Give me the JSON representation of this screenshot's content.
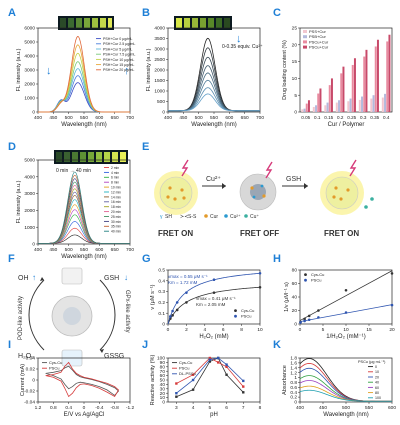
{
  "chart_data": [
    {
      "id": "A",
      "type": "line",
      "panel_label": "A",
      "xlabel": "Wavelength (nm)",
      "ylabel": "FL intensity (a.u.)",
      "xlim": [
        400,
        700
      ],
      "ylim": [
        0,
        6000
      ],
      "xticks": [
        400,
        450,
        500,
        550,
        600,
        650,
        700
      ],
      "yticks": [
        0,
        1000,
        2000,
        3000,
        4000,
        5000,
        6000
      ],
      "legend_position": "top-right",
      "peaks": [
        475,
        530
      ],
      "series": [
        {
          "name": "PSH+Cur 0 μg/mL",
          "color": "#3b4fc4",
          "values": [
            800,
            2100
          ]
        },
        {
          "name": "PSH+Cur 2.5 μg/mL",
          "color": "#4c7fdc",
          "values": [
            750,
            2600
          ]
        },
        {
          "name": "PSH+Cur 5 μg/mL",
          "color": "#5fb8d8",
          "values": [
            700,
            3100
          ]
        },
        {
          "name": "PSH+Cur 7.5 μg/mL",
          "color": "#79c97a",
          "values": [
            650,
            3600
          ]
        },
        {
          "name": "PSH+Cur 10 μg/mL",
          "color": "#c4d24a",
          "values": [
            600,
            4200
          ]
        },
        {
          "name": "PSH+Cur 15 μg/mL",
          "color": "#e8a83a",
          "values": [
            550,
            4800
          ]
        },
        {
          "name": "PSH+Cur 20 μg/mL",
          "color": "#e06a3c",
          "values": [
            500,
            5400
          ]
        }
      ]
    },
    {
      "id": "B",
      "type": "line",
      "panel_label": "B",
      "xlabel": "Wavelength (nm)",
      "ylabel": "FL intensity (a.u.)",
      "xlim": [
        400,
        700
      ],
      "ylim": [
        0,
        4000
      ],
      "xticks": [
        400,
        450,
        500,
        550,
        600,
        650,
        700
      ],
      "yticks": [
        0,
        500,
        1000,
        1500,
        2000,
        2500,
        3000,
        3500,
        4000
      ],
      "annotation": "0-0.35 equiv. Cu²⁺",
      "peak": 530,
      "peaks_by_curve": [
        3450,
        3000,
        2550,
        2150,
        1800,
        1450,
        1100,
        800
      ]
    },
    {
      "id": "C",
      "type": "bar",
      "panel_label": "C",
      "xlabel": "Cur / Polymer",
      "ylabel": "Drug loading content (%)",
      "categories": [
        "0.05",
        "0.1",
        "0.15",
        "0.2",
        "0.25",
        "0.3",
        "0.35",
        "0.4"
      ],
      "ylim": [
        0,
        25
      ],
      "yticks": [
        0,
        5,
        10,
        15,
        20,
        25
      ],
      "legend_position": "top-left",
      "series": [
        {
          "name": "PSS+Cur",
          "color": "#f2c6cf",
          "values": [
            0.8,
            1.5,
            2.0,
            2.8,
            3.2,
            3.6,
            4.0,
            4.3
          ]
        },
        {
          "name": "PSB+Cur",
          "color": "#b4b9dc",
          "values": [
            1.0,
            2.0,
            2.8,
            3.5,
            4.0,
            4.6,
            5.0,
            5.4
          ]
        },
        {
          "name": "PSCu+Cur",
          "color": "#e98ba0",
          "values": [
            2.5,
            5.5,
            8.0,
            11.5,
            14.0,
            16.5,
            19.5,
            21.0
          ]
        },
        {
          "name": "PSCu+Cur",
          "color": "#c84a6a",
          "values": [
            3.5,
            7.0,
            10.0,
            13.5,
            16.0,
            18.5,
            21.5,
            23.0
          ]
        }
      ]
    },
    {
      "id": "D",
      "type": "line",
      "panel_label": "D",
      "xlabel": "Wavelength (nm)",
      "ylabel": "FL intensity (a.u.)",
      "xlim": [
        400,
        700
      ],
      "ylim": [
        0,
        5000
      ],
      "xticks": [
        400,
        450,
        500,
        550,
        600,
        650,
        700
      ],
      "yticks": [
        0,
        1000,
        2000,
        3000,
        4000,
        5000
      ],
      "annotation": "0 min → 40 min",
      "peak": 520,
      "legend_position": "right",
      "series": [
        {
          "name": "0 min",
          "color": "#222222",
          "value": 500
        },
        {
          "name": "2 min",
          "color": "#e04040",
          "value": 900
        },
        {
          "name": "4 min",
          "color": "#3060e0",
          "value": 1300
        },
        {
          "name": "6 min",
          "color": "#30b040",
          "value": 1700
        },
        {
          "name": "8 min",
          "color": "#b040c0",
          "value": 2000
        },
        {
          "name": "10 min",
          "color": "#e0a020",
          "value": 2300
        },
        {
          "name": "12 min",
          "color": "#20b0c0",
          "value": 2600
        },
        {
          "name": "14 min",
          "color": "#8a5a2a",
          "value": 2850
        },
        {
          "name": "16 min",
          "color": "#6060a0",
          "value": 3050
        },
        {
          "name": "18 min",
          "color": "#a0a020",
          "value": 3250
        },
        {
          "name": "20 min",
          "color": "#e06090",
          "value": 3450
        },
        {
          "name": "25 min",
          "color": "#409060",
          "value": 3650
        },
        {
          "name": "30 min",
          "color": "#404080",
          "value": 3850
        },
        {
          "name": "35 min",
          "color": "#c06030",
          "value": 4050
        },
        {
          "name": "40 min",
          "color": "#208080",
          "value": 4250
        }
      ]
    },
    {
      "id": "G",
      "type": "scatter",
      "panel_label": "G",
      "xlabel": "H₂O₂ (mM)",
      "ylabel": "v (μM s⁻¹)",
      "xlim": [
        0,
        10
      ],
      "ylim": [
        0,
        0.5
      ],
      "xticks": [
        0,
        2,
        4,
        6,
        8,
        10
      ],
      "yticks": [
        0,
        0.1,
        0.2,
        0.3,
        0.4,
        0.5
      ],
      "legend_position": "bottom-right",
      "annotations": [
        {
          "line1": "vmax = 0.55 μM s⁻¹",
          "line2": "Km = 1.72 mM"
        },
        {
          "line1": "vmax = 0.41 μM s⁻¹",
          "line2": "Km = 2.05 mM"
        }
      ],
      "series": [
        {
          "name": "Cys-Cu",
          "color": "#333333",
          "vmax": 0.41,
          "km": 2.05,
          "x": [
            0.25,
            0.5,
            1,
            2,
            5,
            10
          ],
          "y": [
            0.05,
            0.08,
            0.13,
            0.2,
            0.29,
            0.34
          ]
        },
        {
          "name": "PSCu",
          "color": "#2f55b0",
          "vmax": 0.55,
          "km": 1.72,
          "x": [
            0.25,
            0.5,
            1,
            2,
            5,
            10
          ],
          "y": [
            0.07,
            0.12,
            0.2,
            0.29,
            0.41,
            0.47
          ]
        }
      ]
    },
    {
      "id": "H",
      "type": "scatter",
      "panel_label": "H",
      "xlabel": "1/H₂O₂ (mM⁻¹)",
      "ylabel": "1/v (μM⁻¹ s)",
      "xlim": [
        0,
        20
      ],
      "ylim": [
        0,
        80
      ],
      "xticks": [
        0,
        5,
        10,
        15,
        20
      ],
      "yticks": [
        0,
        20,
        40,
        60,
        80
      ],
      "legend_position": "top-left",
      "series": [
        {
          "name": "Cys-Cu",
          "color": "#333333",
          "x": [
            0.1,
            1,
            2,
            4,
            10,
            20
          ],
          "y": [
            2.9,
            7.5,
            12,
            20,
            50,
            75
          ]
        },
        {
          "name": "PSCu",
          "color": "#2f55b0",
          "x": [
            0.1,
            1,
            2,
            4,
            10,
            20
          ],
          "y": [
            2.2,
            4.5,
            6.3,
            9.8,
            17,
            28
          ]
        }
      ]
    },
    {
      "id": "I",
      "type": "line",
      "panel_label": "I",
      "xlabel": "E/V vs Ag/AgCl",
      "ylabel": "Current (mA)",
      "xlim": [
        1.2,
        -1.2
      ],
      "ylim": [
        -0.04,
        0.04
      ],
      "xticks": [
        1.2,
        0.8,
        0.4,
        0.0,
        -0.4,
        -0.8,
        -1.2
      ],
      "yticks": [
        -0.04,
        -0.02,
        0,
        0.02,
        0.04
      ],
      "legend_position": "top-left",
      "series": [
        {
          "name": "Cys-Cu",
          "color": "#555555",
          "x": [
            1.0,
            0.8,
            0.6,
            0.5,
            0.4,
            0.3,
            0.2,
            0.1,
            0.0,
            -0.2,
            -0.4,
            -0.6,
            -0.8,
            -0.9,
            -0.8,
            -0.6,
            -0.4,
            -0.2,
            0.0,
            0.1,
            0.2,
            0.3,
            0.4,
            0.5,
            0.6,
            0.8,
            1.0
          ],
          "y": [
            0.012,
            0.014,
            0.017,
            0.022,
            0.025,
            0.018,
            0.01,
            0.006,
            0.004,
            0.001,
            -0.003,
            -0.008,
            -0.014,
            -0.02,
            -0.028,
            -0.018,
            -0.012,
            -0.008,
            -0.005,
            -0.004,
            -0.006,
            -0.012,
            -0.016,
            -0.008,
            0.002,
            0.008,
            0.012
          ]
        },
        {
          "name": "PSCu",
          "color": "#d63a3a",
          "x": [
            1.0,
            0.8,
            0.6,
            0.5,
            0.4,
            0.3,
            0.2,
            0.1,
            0.0,
            -0.2,
            -0.4,
            -0.6,
            -0.8,
            -0.9,
            -0.8,
            -0.6,
            -0.4,
            -0.2,
            0.0,
            0.1,
            0.2,
            0.3,
            0.4,
            0.5,
            0.6,
            0.8,
            1.0
          ],
          "y": [
            0.008,
            0.01,
            0.014,
            0.025,
            0.032,
            0.02,
            0.012,
            0.008,
            0.005,
            0.002,
            -0.002,
            -0.006,
            -0.012,
            -0.018,
            -0.03,
            -0.022,
            -0.015,
            -0.01,
            -0.007,
            -0.008,
            -0.014,
            -0.024,
            -0.03,
            -0.015,
            -0.002,
            0.005,
            0.008
          ]
        }
      ]
    },
    {
      "id": "J",
      "type": "line",
      "panel_label": "J",
      "xlabel": "pH",
      "ylabel": "Reactive activity (%)",
      "xlim": [
        2.5,
        8
      ],
      "ylim": [
        0,
        100
      ],
      "xticks": [
        3,
        4,
        5,
        6,
        7,
        8
      ],
      "yticks": [
        0,
        10,
        20,
        30,
        40,
        50,
        60,
        70,
        80,
        90,
        100
      ],
      "legend_position": "top-left",
      "series": [
        {
          "name": "Cys-Cu",
          "color": "#333333",
          "x": [
            3,
            4,
            5,
            5.5,
            6,
            7
          ],
          "y": [
            12,
            28,
            92,
            100,
            62,
            22
          ]
        },
        {
          "name": "PSCu",
          "color": "#d63a3a",
          "x": [
            3,
            4,
            5,
            5.5,
            6,
            7
          ],
          "y": [
            42,
            62,
            100,
            90,
            80,
            35
          ]
        },
        {
          "name": "DL-PSCu",
          "color": "#2f55b0",
          "x": [
            3,
            4,
            5,
            5.5,
            6,
            7
          ],
          "y": [
            20,
            50,
            96,
            100,
            85,
            48
          ]
        }
      ]
    },
    {
      "id": "K",
      "type": "line",
      "panel_label": "K",
      "xlabel": "Wavelength (nm)",
      "ylabel": "Absorbance",
      "xlim": [
        400,
        600
      ],
      "ylim": [
        0,
        1.8
      ],
      "xticks": [
        400,
        450,
        500,
        550,
        600
      ],
      "yticks": [
        0,
        0.2,
        0.4,
        0.6,
        0.8,
        1.0,
        1.2,
        1.4,
        1.6,
        1.8
      ],
      "legend_title": "PSCu (μg mL⁻¹)",
      "legend_position": "top-right",
      "series": [
        {
          "name": "0",
          "color": "#222222",
          "value": 1.75
        },
        {
          "name": "10",
          "color": "#d63a3a",
          "value": 1.55
        },
        {
          "name": "20",
          "color": "#2f55b0",
          "value": 1.35
        },
        {
          "name": "40",
          "color": "#30a040",
          "value": 1.05
        },
        {
          "name": "60",
          "color": "#9a40c0",
          "value": 0.85
        },
        {
          "name": "80",
          "color": "#e0a020",
          "value": 0.62
        },
        {
          "name": "100",
          "color": "#20a0b0",
          "value": 0.45
        }
      ]
    }
  ],
  "schemes": {
    "E": {
      "panel_label": "E",
      "labels": [
        "FRET ON",
        "FRET OFF",
        "FRET ON"
      ],
      "arrows": [
        "Cu²⁺",
        "GSH"
      ],
      "legend": [
        "SH",
        "S-S",
        "Cur",
        "Cu²⁺",
        "Cu⁺"
      ]
    },
    "F": {
      "panel_label": "F",
      "labels": {
        "oh": "OH",
        "h2o2": "H₂O₂",
        "gsh": "GSH",
        "gssg": "GSSG",
        "pod": "POD-like activity",
        "gpx": "GPx-like activity"
      }
    }
  },
  "colors": {
    "pscu_blue": "#2f55b0",
    "cys_black": "#333333",
    "red": "#d63a3a",
    "accent_blue": "#1e7fd6",
    "fret_glow": "#f5e24a"
  }
}
